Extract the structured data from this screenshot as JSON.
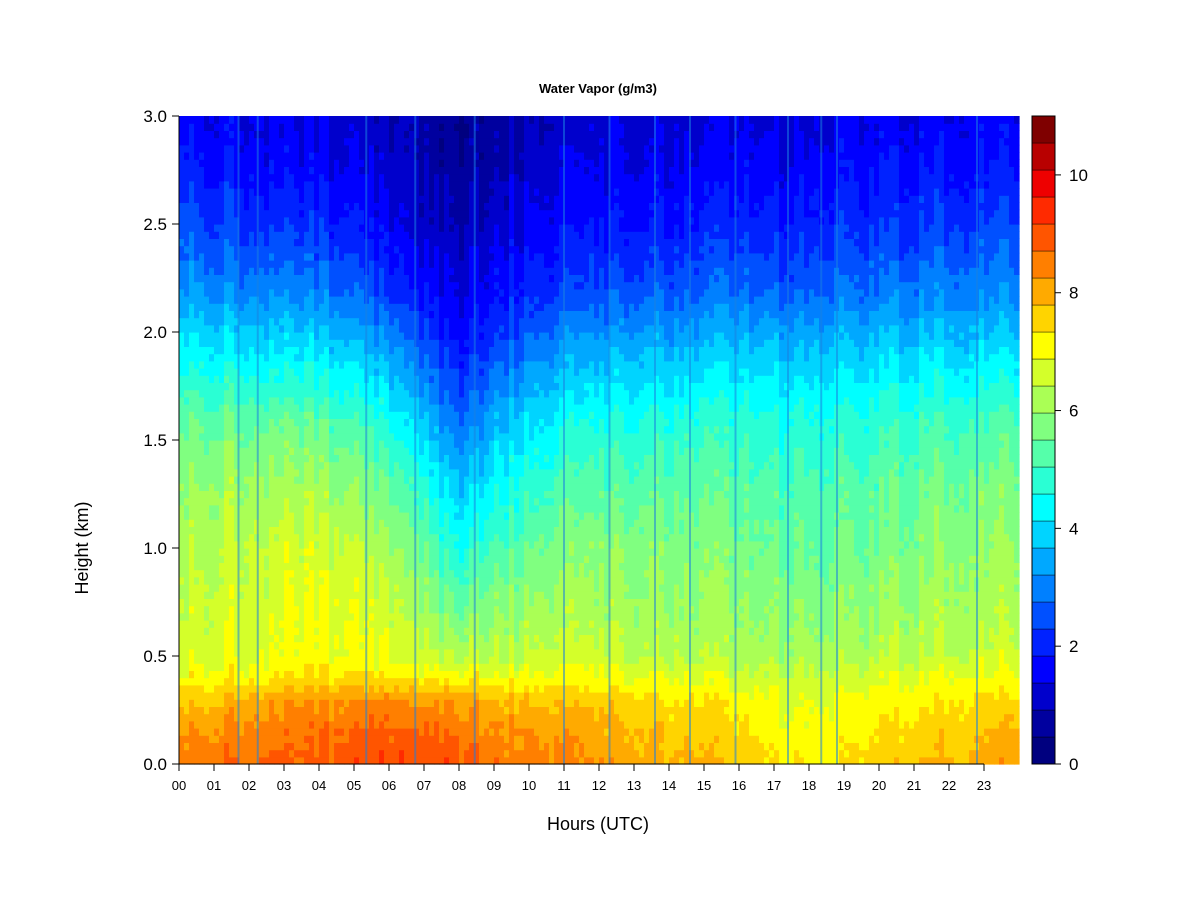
{
  "chart_data": {
    "type": "heatmap",
    "title": "Water Vapor (g/m3)",
    "xlabel": "Hours (UTC)",
    "ylabel": "Height (km)",
    "x_ticks": [
      "00",
      "01",
      "02",
      "03",
      "04",
      "05",
      "06",
      "07",
      "08",
      "09",
      "10",
      "11",
      "12",
      "13",
      "14",
      "15",
      "16",
      "17",
      "18",
      "19",
      "20",
      "21",
      "22",
      "23"
    ],
    "y_ticks": [
      "0.0",
      "0.5",
      "1.0",
      "1.5",
      "2.0",
      "2.5",
      "3.0"
    ],
    "xlim": [
      0,
      24
    ],
    "ylim": [
      0,
      3.0
    ],
    "colorbar": {
      "range": [
        0,
        11
      ],
      "ticks": [
        "0",
        "2",
        "4",
        "6",
        "8",
        "10"
      ],
      "colors": [
        "#00007F",
        "#00009F",
        "#0000CC",
        "#0000FF",
        "#0022FF",
        "#0050FF",
        "#0080FF",
        "#00A8FF",
        "#00D4FF",
        "#00FFFF",
        "#2AFFD4",
        "#55FFAA",
        "#80FF80",
        "#AAFF55",
        "#D4FF2A",
        "#FFFF00",
        "#FFD400",
        "#FFAA00",
        "#FF7F00",
        "#FF5500",
        "#FF2A00",
        "#EE0000",
        "#B80000",
        "#7F0000"
      ]
    },
    "profile_height_km": [
      0.0,
      0.15,
      0.3,
      0.4,
      0.5,
      0.7,
      1.0,
      1.3,
      1.6,
      1.9,
      2.2,
      2.5,
      2.8,
      3.0
    ],
    "profile_hours": [
      0,
      2,
      4,
      5,
      6,
      7,
      7.5,
      8,
      8.5,
      9,
      11,
      13,
      15,
      16,
      17,
      18,
      19,
      20,
      22,
      23.9
    ],
    "values_g_m3": [
      [
        8.5,
        8.8,
        8.8,
        9.0,
        9.2,
        9.0,
        9.1,
        8.9,
        8.8,
        8.6,
        8.4,
        8.0,
        7.8,
        7.6,
        7.3,
        7.2,
        7.3,
        7.6,
        7.9,
        8.2
      ],
      [
        8.2,
        8.5,
        8.6,
        8.7,
        8.8,
        8.7,
        8.8,
        8.6,
        8.5,
        8.4,
        8.1,
        7.8,
        7.6,
        7.4,
        7.1,
        7.0,
        7.1,
        7.4,
        7.6,
        7.9
      ],
      [
        7.6,
        8.0,
        8.2,
        8.3,
        8.3,
        8.2,
        8.2,
        8.1,
        8.1,
        7.9,
        7.7,
        7.5,
        7.3,
        7.1,
        6.9,
        6.8,
        6.9,
        7.1,
        7.3,
        7.5
      ],
      [
        7.0,
        7.3,
        7.4,
        7.4,
        7.3,
        7.2,
        7.1,
        7.1,
        7.2,
        7.1,
        7.0,
        6.9,
        6.8,
        6.6,
        6.5,
        6.5,
        6.6,
        6.7,
        6.9,
        7.0
      ],
      [
        6.7,
        6.9,
        7.0,
        6.9,
        6.8,
        6.6,
        6.4,
        6.3,
        6.4,
        6.4,
        6.5,
        6.4,
        6.3,
        6.2,
        6.1,
        6.1,
        6.2,
        6.3,
        6.5,
        6.6
      ],
      [
        6.5,
        6.8,
        6.9,
        6.8,
        6.6,
        6.2,
        5.8,
        5.6,
        5.8,
        6.0,
        6.2,
        6.1,
        6.0,
        5.9,
        5.8,
        5.8,
        5.9,
        6.0,
        6.2,
        6.3
      ],
      [
        6.2,
        6.6,
        6.6,
        6.4,
        6.1,
        5.5,
        4.9,
        4.6,
        4.8,
        5.2,
        5.7,
        5.8,
        5.7,
        5.6,
        5.5,
        5.4,
        5.5,
        5.6,
        5.9,
        6.0
      ],
      [
        5.9,
        6.2,
        6.1,
        5.8,
        5.4,
        4.7,
        4.1,
        3.7,
        3.9,
        4.4,
        5.1,
        5.3,
        5.3,
        5.2,
        5.1,
        5.1,
        5.2,
        5.3,
        5.6,
        5.7
      ],
      [
        5.4,
        5.5,
        5.3,
        5.0,
        4.5,
        3.8,
        3.1,
        2.8,
        3.0,
        3.6,
        4.3,
        4.6,
        4.7,
        4.7,
        4.6,
        4.6,
        4.7,
        4.8,
        5.0,
        5.1
      ],
      [
        4.4,
        4.3,
        4.1,
        3.8,
        3.4,
        2.7,
        2.2,
        1.9,
        2.1,
        2.6,
        3.3,
        3.6,
        3.7,
        3.8,
        3.7,
        3.7,
        3.8,
        3.9,
        4.0,
        4.1
      ],
      [
        3.2,
        3.1,
        2.9,
        2.6,
        2.2,
        1.8,
        1.5,
        1.3,
        1.5,
        1.8,
        2.2,
        2.5,
        2.6,
        2.7,
        2.6,
        2.6,
        2.8,
        2.9,
        3.0,
        3.1
      ],
      [
        2.5,
        2.3,
        2.1,
        1.8,
        1.5,
        1.2,
        1.0,
        0.9,
        1.0,
        1.3,
        1.6,
        1.8,
        1.9,
        2.0,
        1.9,
        1.9,
        2.1,
        2.2,
        2.3,
        2.4
      ],
      [
        1.9,
        1.7,
        1.5,
        1.3,
        1.1,
        0.9,
        0.7,
        0.6,
        0.7,
        0.9,
        1.2,
        1.4,
        1.4,
        1.5,
        1.4,
        1.4,
        1.6,
        1.7,
        1.7,
        1.8
      ],
      [
        1.6,
        1.5,
        1.3,
        1.1,
        1.0,
        0.8,
        0.6,
        0.5,
        0.6,
        0.8,
        1.0,
        1.2,
        1.2,
        1.3,
        1.2,
        1.2,
        1.4,
        1.5,
        1.5,
        1.6
      ]
    ],
    "vertical_streaks_hours": [
      1.7,
      2.25,
      5.35,
      6.75,
      8.45,
      11.0,
      12.3,
      13.6,
      14.6,
      15.9,
      17.4,
      18.35,
      18.8,
      22.8
    ],
    "grid": false,
    "legend": "colorbar-right"
  }
}
